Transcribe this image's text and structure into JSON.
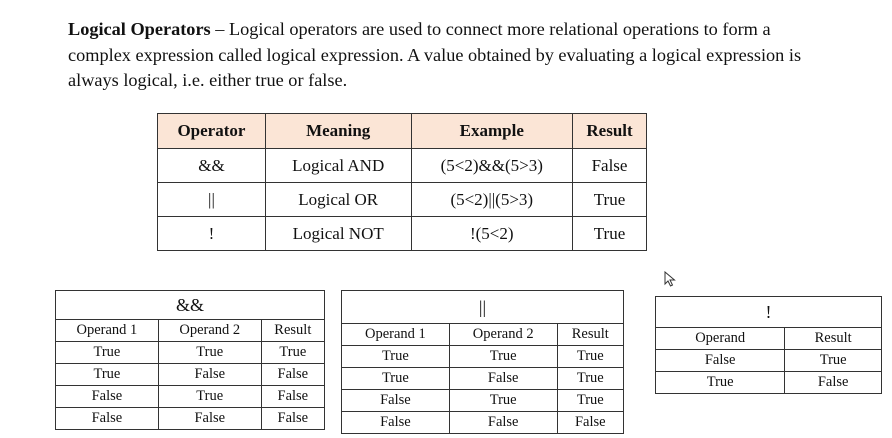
{
  "paragraph": {
    "lead": "Logical Operators",
    "text": " – Logical operators are used to connect more relational operations to form a complex expression called logical expression. A value obtained by evaluating a logical expression is always logical, i.e. either true or false."
  },
  "operator_table": {
    "headers": [
      "Operator",
      "Meaning",
      "Example",
      "Result"
    ],
    "rows": [
      [
        "&&",
        "Logical AND",
        "(5<2)&&(5>3)",
        "False"
      ],
      [
        "||",
        "Logical OR",
        "(5<2)||(5>3)",
        "True"
      ],
      [
        "!",
        "Logical NOT",
        "!(5<2)",
        "True"
      ]
    ]
  },
  "and_table": {
    "title": "&&",
    "headers": [
      "Operand 1",
      "Operand 2",
      "Result"
    ],
    "rows": [
      [
        "True",
        "True",
        "True"
      ],
      [
        "True",
        "False",
        "False"
      ],
      [
        "False",
        "True",
        "False"
      ],
      [
        "False",
        "False",
        "False"
      ]
    ]
  },
  "or_table": {
    "title": "||",
    "headers": [
      "Operand 1",
      "Operand 2",
      "Result"
    ],
    "rows": [
      [
        "True",
        "True",
        "True"
      ],
      [
        "True",
        "False",
        "True"
      ],
      [
        "False",
        "True",
        "True"
      ],
      [
        "False",
        "False",
        "False"
      ]
    ]
  },
  "not_table": {
    "title": "!",
    "headers": [
      "Operand",
      "Result"
    ],
    "rows": [
      [
        "False",
        "True"
      ],
      [
        "True",
        "False"
      ]
    ]
  },
  "colors": {
    "header_fill": "#fbe5d6",
    "border": "#333333"
  },
  "icons": {
    "cursor": "mouse-pointer-icon"
  }
}
